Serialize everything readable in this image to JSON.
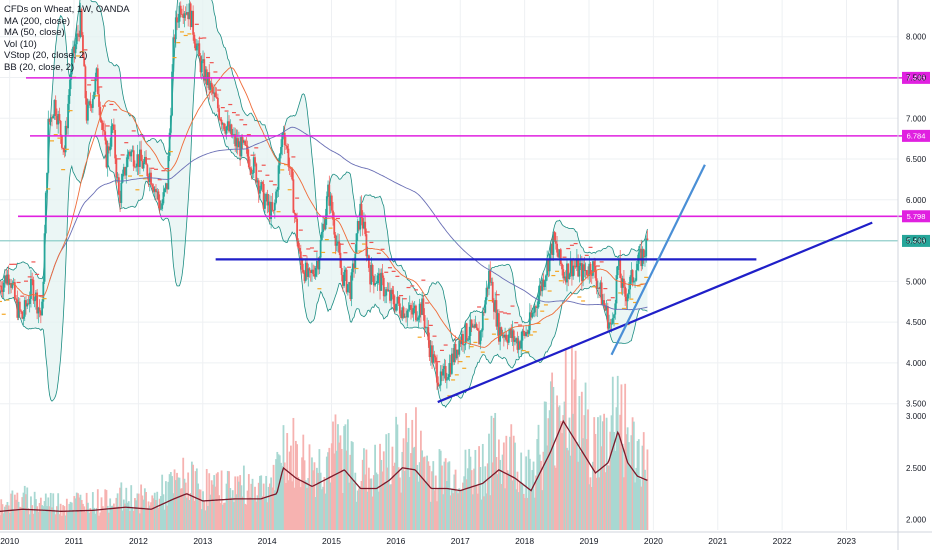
{
  "header": {
    "title": "CFDs on Wheat, 1W, OANDA",
    "indicators": [
      "MA (200, close)",
      "MA (50, close)",
      "Vol (10)",
      "VStop (20, close, 2)",
      "BB (20, close, 2)"
    ]
  },
  "chart_data": {
    "type": "candlestick",
    "x_ticks": [
      "2010",
      "2011",
      "2012",
      "2013",
      "2014",
      "2015",
      "2016",
      "2017",
      "2018",
      "2019",
      "2020",
      "2021",
      "2022",
      "2023"
    ],
    "price_ticks": [
      "3.500",
      "4.000",
      "4.500",
      "5.000",
      "5.500",
      "6.000",
      "6.500",
      "7.000",
      "7.500",
      "8.000"
    ],
    "volume_ticks": [
      "2.000",
      "2.500",
      "3.000"
    ],
    "price_ylim": [
      3.3,
      8.45
    ],
    "volume_ylim": [
      1.9,
      3.25
    ],
    "x_range": [
      2009.85,
      2023.8
    ],
    "price_path": [
      [
        2009.85,
        4.95
      ],
      [
        2010.0,
        5.1
      ],
      [
        2010.1,
        4.7
      ],
      [
        2010.2,
        4.55
      ],
      [
        2010.35,
        4.95
      ],
      [
        2010.5,
        4.55
      ],
      [
        2010.6,
        6.9
      ],
      [
        2010.7,
        7.2
      ],
      [
        2010.85,
        6.6
      ],
      [
        2010.95,
        7.6
      ],
      [
        2011.1,
        8.2
      ],
      [
        2011.2,
        7.0
      ],
      [
        2011.35,
        7.5
      ],
      [
        2011.5,
        6.5
      ],
      [
        2011.6,
        6.9
      ],
      [
        2011.7,
        6.0
      ],
      [
        2011.85,
        6.6
      ],
      [
        2012.0,
        6.5
      ],
      [
        2012.2,
        6.3
      ],
      [
        2012.35,
        5.9
      ],
      [
        2012.45,
        6.2
      ],
      [
        2012.55,
        8.0
      ],
      [
        2012.65,
        8.4
      ],
      [
        2012.8,
        8.3
      ],
      [
        2012.95,
        7.7
      ],
      [
        2013.05,
        7.5
      ],
      [
        2013.3,
        7.0
      ],
      [
        2013.5,
        6.7
      ],
      [
        2013.65,
        6.6
      ],
      [
        2013.8,
        6.4
      ],
      [
        2013.95,
        6.0
      ],
      [
        2014.1,
        5.8
      ],
      [
        2014.25,
        6.9
      ],
      [
        2014.35,
        6.4
      ],
      [
        2014.5,
        5.3
      ],
      [
        2014.65,
        5.0
      ],
      [
        2014.8,
        5.3
      ],
      [
        2014.95,
        6.1
      ],
      [
        2015.0,
        5.9
      ],
      [
        2015.15,
        5.1
      ],
      [
        2015.3,
        4.9
      ],
      [
        2015.45,
        5.9
      ],
      [
        2015.6,
        5.1
      ],
      [
        2015.75,
        5.0
      ],
      [
        2015.9,
        4.8
      ],
      [
        2016.05,
        4.7
      ],
      [
        2016.25,
        4.6
      ],
      [
        2016.4,
        4.7
      ],
      [
        2016.55,
        4.1
      ],
      [
        2016.7,
        3.75
      ],
      [
        2016.85,
        4.0
      ],
      [
        2017.0,
        4.3
      ],
      [
        2017.15,
        4.4
      ],
      [
        2017.3,
        4.3
      ],
      [
        2017.45,
        5.1
      ],
      [
        2017.6,
        4.4
      ],
      [
        2017.75,
        4.35
      ],
      [
        2017.9,
        4.25
      ],
      [
        2018.05,
        4.4
      ],
      [
        2018.2,
        4.8
      ],
      [
        2018.35,
        5.2
      ],
      [
        2018.45,
        5.5
      ],
      [
        2018.6,
        5.1
      ],
      [
        2018.75,
        5.2
      ],
      [
        2018.9,
        5.1
      ],
      [
        2019.05,
        5.2
      ],
      [
        2019.2,
        4.8
      ],
      [
        2019.35,
        4.4
      ],
      [
        2019.45,
        5.2
      ],
      [
        2019.55,
        4.8
      ],
      [
        2019.65,
        5.0
      ],
      [
        2019.75,
        5.2
      ],
      [
        2019.85,
        5.35
      ],
      [
        2019.92,
        5.5
      ]
    ],
    "volume_path": [
      [
        2009.85,
        2.08
      ],
      [
        2010.2,
        2.1
      ],
      [
        2010.55,
        2.09
      ],
      [
        2010.8,
        2.08
      ],
      [
        2011.3,
        2.09
      ],
      [
        2011.8,
        2.12
      ],
      [
        2012.2,
        2.1
      ],
      [
        2012.55,
        2.2
      ],
      [
        2012.75,
        2.25
      ],
      [
        2013.0,
        2.18
      ],
      [
        2013.5,
        2.2
      ],
      [
        2013.9,
        2.2
      ],
      [
        2014.15,
        2.25
      ],
      [
        2014.25,
        2.5
      ],
      [
        2014.45,
        2.4
      ],
      [
        2014.7,
        2.32
      ],
      [
        2014.95,
        2.4
      ],
      [
        2015.2,
        2.48
      ],
      [
        2015.45,
        2.3
      ],
      [
        2015.7,
        2.3
      ],
      [
        2015.9,
        2.38
      ],
      [
        2016.1,
        2.5
      ],
      [
        2016.3,
        2.48
      ],
      [
        2016.55,
        2.3
      ],
      [
        2016.8,
        2.3
      ],
      [
        2017.0,
        2.28
      ],
      [
        2017.35,
        2.35
      ],
      [
        2017.6,
        2.48
      ],
      [
        2017.85,
        2.4
      ],
      [
        2018.1,
        2.28
      ],
      [
        2018.4,
        2.65
      ],
      [
        2018.6,
        2.95
      ],
      [
        2018.8,
        2.75
      ],
      [
        2018.95,
        2.6
      ],
      [
        2019.1,
        2.45
      ],
      [
        2019.3,
        2.55
      ],
      [
        2019.45,
        2.85
      ],
      [
        2019.6,
        2.55
      ],
      [
        2019.75,
        2.42
      ],
      [
        2019.9,
        2.38
      ]
    ],
    "horizontal_levels": [
      {
        "label": "7.495",
        "y": 7.495,
        "color": "#e020e0"
      },
      {
        "label": "6.784",
        "y": 6.784,
        "color": "#e020e0"
      },
      {
        "label": "5.798",
        "y": 5.798,
        "color": "#e020e0"
      }
    ],
    "last_price": {
      "label": "5.496",
      "y": 5.496,
      "color": "#26a69a"
    },
    "trendlines": [
      {
        "color": "#1f1fc8",
        "points": [
          [
            2013.2,
            5.27
          ],
          [
            2021.6,
            5.27
          ]
        ]
      },
      {
        "color": "#1f1fc8",
        "points": [
          [
            2016.65,
            3.52
          ],
          [
            2023.4,
            5.72
          ]
        ]
      },
      {
        "color": "#4a8fd6",
        "points": [
          [
            2019.35,
            4.1
          ],
          [
            2020.8,
            6.43
          ]
        ]
      }
    ],
    "colors": {
      "up": "#26a69a",
      "down": "#ef5350",
      "ma200": "#6a6fb5",
      "ma50": "#ef6c3a",
      "bb": "#1b8c82",
      "vstop": "#f5a623"
    }
  }
}
